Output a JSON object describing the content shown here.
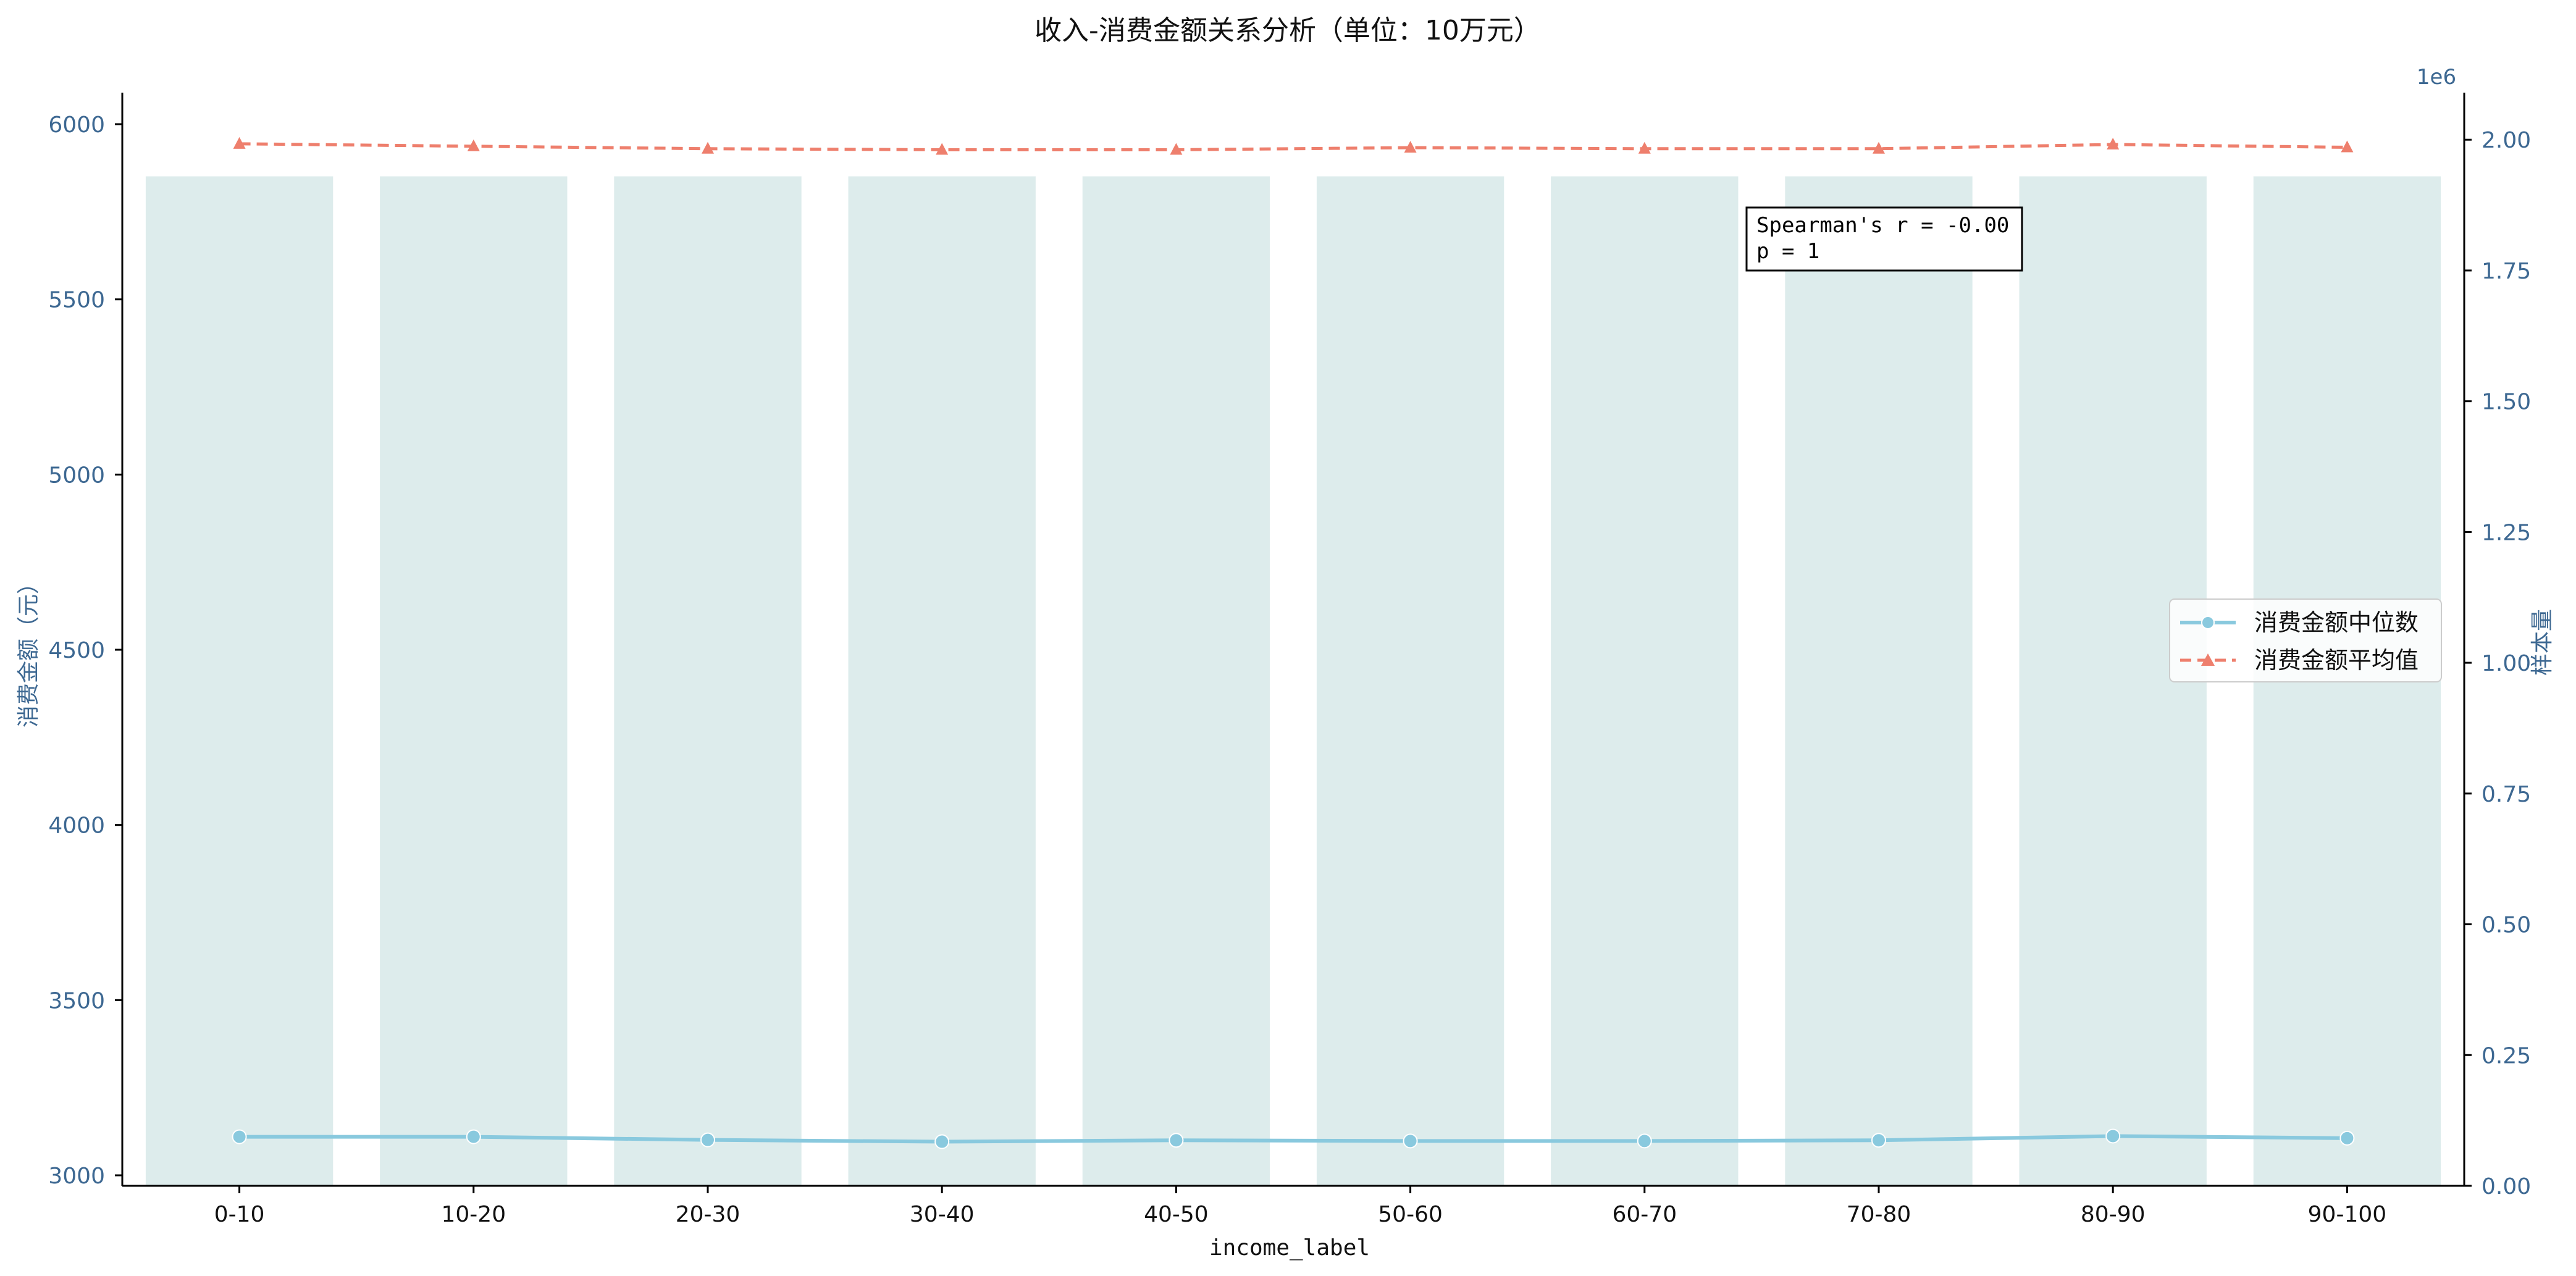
{
  "chart_data": {
    "type": "bar",
    "title": "收入-消费金额关系分析（单位：10万元）",
    "xlabel": "income_label",
    "ylabel_left": "消费金额（元）",
    "ylabel_right": "样本量",
    "right_axis_offset_label": "1e6",
    "categories": [
      "0-10",
      "10-20",
      "20-30",
      "30-40",
      "40-50",
      "50-60",
      "60-70",
      "70-80",
      "80-90",
      "90-100"
    ],
    "left_axis": {
      "ylim": [
        2970,
        6090
      ],
      "ticks": [
        3000,
        3500,
        4000,
        4500,
        5000,
        5500,
        6000
      ]
    },
    "right_axis": {
      "ylim": [
        0,
        2.09
      ],
      "ticks": [
        0.0,
        0.25,
        0.5,
        0.75,
        1.0,
        1.25,
        1.5,
        1.75,
        2.0
      ],
      "tick_labels": [
        "0.00",
        "0.25",
        "0.50",
        "0.75",
        "1.00",
        "1.25",
        "1.50",
        "1.75",
        "2.00"
      ]
    },
    "bars": {
      "axis": "right",
      "values": [
        1.93,
        1.93,
        1.93,
        1.93,
        1.93,
        1.93,
        1.93,
        1.93,
        1.93,
        1.93
      ],
      "color": "#ddecec"
    },
    "series": [
      {
        "name": "消费金额中位数",
        "type": "line",
        "axis": "left",
        "values": [
          3110,
          3110,
          3101,
          3096,
          3100,
          3098,
          3098,
          3100,
          3112,
          3106
        ],
        "color": "#89c9de",
        "marker": "circle",
        "linestyle": "solid"
      },
      {
        "name": "消费金额平均值",
        "type": "line",
        "axis": "left",
        "values": [
          5944,
          5937,
          5930,
          5927,
          5927,
          5933,
          5930,
          5930,
          5942,
          5934
        ],
        "color": "#ee7f6d",
        "marker": "triangle",
        "linestyle": "dashed"
      }
    ],
    "annotation": {
      "line1": "Spearman's r = -0.00",
      "line2": "p = 1",
      "placement": "top-right"
    },
    "legend_placement": "center-right",
    "grid": false,
    "colors": {
      "axis_left_tick_text": "#3d6892",
      "axis_right_tick_text": "#3d6892",
      "axis_line": "#000000",
      "text": "#111111"
    }
  }
}
